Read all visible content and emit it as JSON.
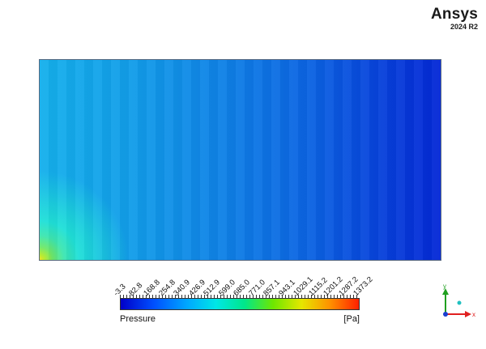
{
  "brand": {
    "name": "Ansys",
    "version": "2024 R2"
  },
  "legend": {
    "variable": "Pressure",
    "unit": "[Pa]",
    "tick_labels": [
      "-3.3",
      "82.8",
      "168.8",
      "254.8",
      "340.9",
      "426.9",
      "512.9",
      "599.0",
      "685.0",
      "771.0",
      "857.1",
      "943.1",
      "1029.1",
      "1115.2",
      "1201.2",
      "1287.2",
      "1373.2"
    ],
    "min": -3.3,
    "max": 1373.2
  },
  "axes": {
    "x_label": "x",
    "y_label": "y",
    "x_color": "#e02020",
    "y_color": "#20a020",
    "z_color": "#20c0c0"
  },
  "colors": {
    "plot_border": "#5a6a80"
  }
}
